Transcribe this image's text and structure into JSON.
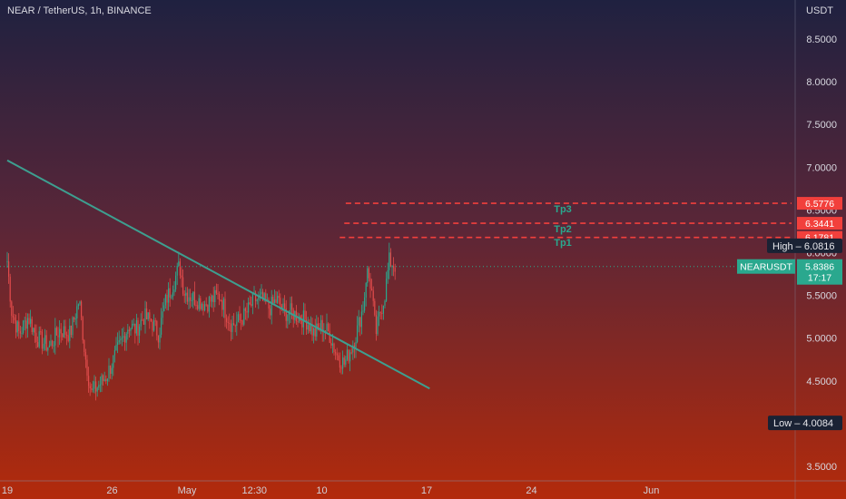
{
  "header": {
    "symbol_title": "NEAR / TetherUS, 1h, BINANCE",
    "currency": "USDT"
  },
  "colors": {
    "bg_top": "#1f2140",
    "bg_bottom": "#b32a0b",
    "up_candle": "#2aa88e",
    "down_candle": "#e04b4b",
    "trendline": "#3d9f90",
    "target_line": "#f2403c",
    "target_text": "#2aa88e",
    "last_price_bg": "#2aa88e",
    "hl_label_bg": "#1a2234"
  },
  "chart_data": {
    "type": "candlestick",
    "interval": "1h",
    "price_axis": {
      "ticks": [
        3.5,
        4.0,
        4.5,
        5.0,
        5.5,
        6.0,
        6.5,
        7.0,
        7.5,
        8.0,
        8.5
      ],
      "tick_labels": [
        "3.5000",
        "4.0000",
        "4.5000",
        "5.0000",
        "5.5000",
        "6.0000",
        "6.5000",
        "7.0000",
        "7.5000",
        "8.0000",
        "8.5000"
      ],
      "scale": "linear"
    },
    "time_axis": {
      "ticks": [
        {
          "label": "19",
          "day": 19
        },
        {
          "label": "26",
          "day": 26
        },
        {
          "label": "May",
          "day": 31
        },
        {
          "label": "12:30",
          "day": 35.5
        },
        {
          "label": "10",
          "day": 40
        },
        {
          "label": "17",
          "day": 47
        },
        {
          "label": "24",
          "day": 54
        },
        {
          "label": "Jun",
          "day": 62
        }
      ]
    },
    "candles_path": [
      [
        19.0,
        5.9
      ],
      [
        19.3,
        5.3
      ],
      [
        19.8,
        5.05
      ],
      [
        20.4,
        5.25
      ],
      [
        21.0,
        5.0
      ],
      [
        21.8,
        4.9
      ],
      [
        22.5,
        5.1
      ],
      [
        23.2,
        5.05
      ],
      [
        23.8,
        5.45
      ],
      [
        24.2,
        4.8
      ],
      [
        24.6,
        4.35
      ],
      [
        25.1,
        4.45
      ],
      [
        25.6,
        4.55
      ],
      [
        26.1,
        4.75
      ],
      [
        26.6,
        4.95
      ],
      [
        27.1,
        5.15
      ],
      [
        27.6,
        5.1
      ],
      [
        28.1,
        5.25
      ],
      [
        28.6,
        5.2
      ],
      [
        29.1,
        5.05
      ],
      [
        29.6,
        5.45
      ],
      [
        30.0,
        5.6
      ],
      [
        30.5,
        5.85
      ],
      [
        30.8,
        5.55
      ],
      [
        31.2,
        5.5
      ],
      [
        31.7,
        5.45
      ],
      [
        32.2,
        5.4
      ],
      [
        32.7,
        5.45
      ],
      [
        33.2,
        5.5
      ],
      [
        33.6,
        5.3
      ],
      [
        34.0,
        5.15
      ],
      [
        34.5,
        5.2
      ],
      [
        35.0,
        5.3
      ],
      [
        35.5,
        5.45
      ],
      [
        36.0,
        5.45
      ],
      [
        36.5,
        5.35
      ],
      [
        37.0,
        5.45
      ],
      [
        37.5,
        5.3
      ],
      [
        38.0,
        5.3
      ],
      [
        38.5,
        5.25
      ],
      [
        39.0,
        5.2
      ],
      [
        39.5,
        5.05
      ],
      [
        40.0,
        5.15
      ],
      [
        40.5,
        5.05
      ],
      [
        41.0,
        4.8
      ],
      [
        41.5,
        4.7
      ],
      [
        42.0,
        4.9
      ],
      [
        42.3,
        5.05
      ],
      [
        42.8,
        5.4
      ],
      [
        43.0,
        5.8
      ],
      [
        43.3,
        5.6
      ],
      [
        43.6,
        5.05
      ],
      [
        43.9,
        5.3
      ],
      [
        44.2,
        5.5
      ],
      [
        44.5,
        5.9
      ],
      [
        44.9,
        5.85
      ]
    ],
    "trendline": {
      "from": {
        "day": 19.0,
        "price": 7.08
      },
      "to": {
        "day": 47.2,
        "price": 4.41
      }
    },
    "targets": [
      {
        "name": "Tp1",
        "price": 6.1781,
        "label": "6.1781",
        "from_day": 41.2
      },
      {
        "name": "Tp2",
        "price": 6.3441,
        "label": "6.3441",
        "from_day": 41.5
      },
      {
        "name": "Tp3",
        "price": 6.5776,
        "label": "6.5776",
        "from_day": 41.6
      }
    ],
    "high": {
      "label": "High",
      "price": 6.0816,
      "value": "6.0816"
    },
    "low": {
      "label": "Low",
      "price": 4.0084,
      "value": "4.0084"
    },
    "last": {
      "symbol": "NEARUSDT",
      "price": 5.8386,
      "value": "5.8386",
      "countdown": "17:17"
    }
  }
}
